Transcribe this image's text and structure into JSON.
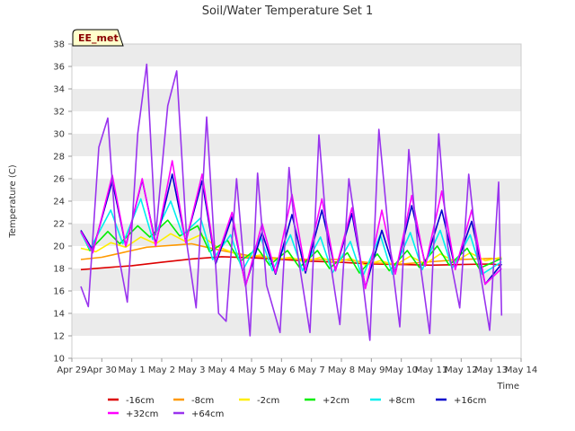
{
  "chart_data": {
    "type": "line",
    "title": "Soil/Water Temperature Set 1",
    "xlabel": "Time",
    "ylabel": "Temperature (C)",
    "ylim": [
      10,
      38
    ],
    "yticks": [
      10,
      12,
      14,
      16,
      18,
      20,
      22,
      24,
      26,
      28,
      30,
      32,
      34,
      36,
      38
    ],
    "xlim": [
      0,
      15
    ],
    "xticks": [
      {
        "x": 0,
        "label": "Apr 29"
      },
      {
        "x": 1,
        "label": "Apr 30"
      },
      {
        "x": 2,
        "label": "May 1"
      },
      {
        "x": 3,
        "label": "May 2"
      },
      {
        "x": 4,
        "label": "May 3"
      },
      {
        "x": 5,
        "label": "May 4"
      },
      {
        "x": 6,
        "label": "May 5"
      },
      {
        "x": 7,
        "label": "May 6"
      },
      {
        "x": 8,
        "label": "May 7"
      },
      {
        "x": 9,
        "label": "May 8"
      },
      {
        "x": 10,
        "label": "May 9"
      },
      {
        "x": 11,
        "label": "May 10"
      },
      {
        "x": 12,
        "label": "May 11"
      },
      {
        "x": 13,
        "label": "May 12"
      },
      {
        "x": 14,
        "label": "May 13"
      },
      {
        "x": 15,
        "label": "May 14"
      }
    ],
    "x_units": "days since Apr 29",
    "grid": "alternating horizontal bands",
    "legend_position": "bottom",
    "badge": "EE_met",
    "series": [
      {
        "name": "-16cm",
        "color": "#dd0000",
        "x": [
          0.3,
          1,
          2,
          3,
          4,
          5,
          6,
          7,
          8,
          9,
          10,
          11,
          12,
          13,
          14,
          14.35
        ],
        "y": [
          17.9,
          18.05,
          18.25,
          18.55,
          18.85,
          19.05,
          18.95,
          18.8,
          18.65,
          18.55,
          18.4,
          18.35,
          18.3,
          18.35,
          18.4,
          18.3
        ]
      },
      {
        "name": "-8cm",
        "color": "#ff9900",
        "x": [
          0.3,
          1,
          1.5,
          2,
          2.5,
          3,
          3.5,
          4,
          4.5,
          5,
          6,
          7,
          8,
          9,
          10,
          11,
          12,
          13,
          14,
          14.35
        ],
        "y": [
          18.8,
          19.0,
          19.3,
          19.6,
          19.9,
          20.0,
          20.1,
          20.2,
          19.9,
          19.6,
          19.1,
          18.9,
          18.8,
          18.8,
          18.5,
          18.4,
          18.6,
          18.8,
          18.9,
          18.8
        ]
      },
      {
        "name": "-2cm",
        "color": "#ffee00",
        "x": [
          0.3,
          0.8,
          1.3,
          1.8,
          2.3,
          2.8,
          3.3,
          3.8,
          4.3,
          4.8,
          5.3,
          5.8,
          6.3,
          6.8,
          7.3,
          7.8,
          8.3,
          8.8,
          9.3,
          9.8,
          10.3,
          10.8,
          11.3,
          11.8,
          12.3,
          12.8,
          13.3,
          13.8,
          14.35
        ],
        "y": [
          19.8,
          19.5,
          20.3,
          19.9,
          20.8,
          20.2,
          21.1,
          20.4,
          21.0,
          20.0,
          19.5,
          19.0,
          19.2,
          18.8,
          19.0,
          18.6,
          19.0,
          18.5,
          18.9,
          18.3,
          18.7,
          18.3,
          19.1,
          18.4,
          19.3,
          18.6,
          19.4,
          18.7,
          19.0
        ]
      },
      {
        "name": "+2cm",
        "color": "#00ee00",
        "x": [
          0.3,
          0.6,
          1.2,
          1.6,
          2.2,
          2.6,
          3.2,
          3.6,
          4.2,
          4.6,
          5.2,
          5.6,
          6.2,
          6.6,
          7.2,
          7.6,
          8.2,
          8.6,
          9.2,
          9.6,
          10.2,
          10.6,
          11.2,
          11.6,
          12.2,
          12.6,
          13.2,
          13.6,
          14.35
        ],
        "y": [
          21.3,
          19.6,
          21.3,
          20.2,
          21.8,
          20.8,
          22.3,
          20.9,
          21.8,
          19.5,
          20.5,
          18.6,
          19.8,
          18.3,
          19.6,
          18.1,
          19.6,
          18.0,
          19.4,
          17.6,
          19.3,
          17.8,
          19.6,
          18.1,
          20.0,
          18.3,
          19.8,
          18.0,
          18.9
        ]
      },
      {
        "name": "+8cm",
        "color": "#00eeee",
        "x": [
          0.3,
          0.6,
          1.3,
          1.7,
          2.3,
          2.7,
          3.3,
          3.7,
          4.3,
          4.7,
          5.3,
          5.7,
          6.3,
          6.7,
          7.3,
          7.7,
          8.3,
          8.7,
          9.3,
          9.7,
          10.3,
          10.7,
          11.3,
          11.7,
          12.3,
          12.7,
          13.3,
          13.7,
          14.35
        ],
        "y": [
          21.2,
          19.7,
          23.2,
          20.2,
          24.2,
          20.6,
          24.0,
          21.0,
          22.5,
          18.8,
          21.0,
          17.8,
          20.8,
          17.8,
          21.0,
          17.8,
          20.8,
          17.6,
          20.4,
          17.2,
          21.0,
          17.5,
          21.2,
          17.9,
          21.4,
          18.0,
          21.0,
          17.5,
          18.6
        ]
      },
      {
        "name": "+16cm",
        "color": "#0000cc",
        "x": [
          0.3,
          0.7,
          1.35,
          1.8,
          2.35,
          2.8,
          3.35,
          3.8,
          4.35,
          4.8,
          5.35,
          5.8,
          6.35,
          6.8,
          7.35,
          7.8,
          8.35,
          8.8,
          9.35,
          9.8,
          10.35,
          10.8,
          11.35,
          11.8,
          12.35,
          12.8,
          13.35,
          13.8,
          14.35
        ],
        "y": [
          21.4,
          19.6,
          25.8,
          20.0,
          25.9,
          20.2,
          26.4,
          20.4,
          25.8,
          18.4,
          22.6,
          16.5,
          21.2,
          17.5,
          22.8,
          17.6,
          23.2,
          17.8,
          22.9,
          16.3,
          21.4,
          17.6,
          23.6,
          18.4,
          23.2,
          18.0,
          22.2,
          16.6,
          18.4
        ]
      },
      {
        "name": "+32cm",
        "color": "#ff00ff",
        "x": [
          0.3,
          0.7,
          1.35,
          1.8,
          2.35,
          2.8,
          3.35,
          3.8,
          4.35,
          4.8,
          5.35,
          5.8,
          6.35,
          6.8,
          7.35,
          7.8,
          8.35,
          8.8,
          9.35,
          9.8,
          10.35,
          10.8,
          11.35,
          11.8,
          12.35,
          12.8,
          13.35,
          13.8,
          14.35
        ],
        "y": [
          21.3,
          19.4,
          26.3,
          20.0,
          26.0,
          20.0,
          27.6,
          20.3,
          26.4,
          18.6,
          23.0,
          16.4,
          22.0,
          17.6,
          24.6,
          17.8,
          24.2,
          17.8,
          23.4,
          16.2,
          23.2,
          17.5,
          24.5,
          18.2,
          24.9,
          17.9,
          23.2,
          16.6,
          18.0
        ]
      },
      {
        "name": "+64cm",
        "color": "#9933ee",
        "x": [
          0.3,
          0.55,
          0.9,
          1.2,
          1.5,
          1.85,
          2.2,
          2.5,
          2.8,
          3.2,
          3.5,
          3.85,
          4.15,
          4.5,
          4.9,
          5.15,
          5.5,
          5.95,
          6.2,
          6.5,
          6.95,
          7.25,
          7.5,
          7.95,
          8.25,
          8.55,
          8.95,
          9.25,
          9.55,
          9.95,
          10.25,
          10.6,
          10.95,
          11.25,
          11.55,
          11.95,
          12.25,
          12.55,
          12.95,
          13.25,
          13.55,
          13.95,
          14.25,
          14.35
        ],
        "y": [
          16.4,
          14.6,
          28.8,
          31.4,
          20.0,
          15.0,
          30.0,
          36.2,
          21.0,
          32.5,
          35.6,
          20.0,
          14.5,
          31.5,
          14.0,
          13.3,
          26.0,
          12.0,
          26.5,
          16.5,
          12.3,
          27.0,
          20.0,
          12.3,
          29.9,
          20.0,
          13.0,
          26.0,
          20.5,
          11.6,
          30.4,
          20.5,
          12.8,
          28.6,
          20.0,
          12.2,
          30.0,
          20.0,
          14.5,
          26.4,
          19.0,
          12.5,
          25.7,
          13.8
        ]
      }
    ]
  }
}
